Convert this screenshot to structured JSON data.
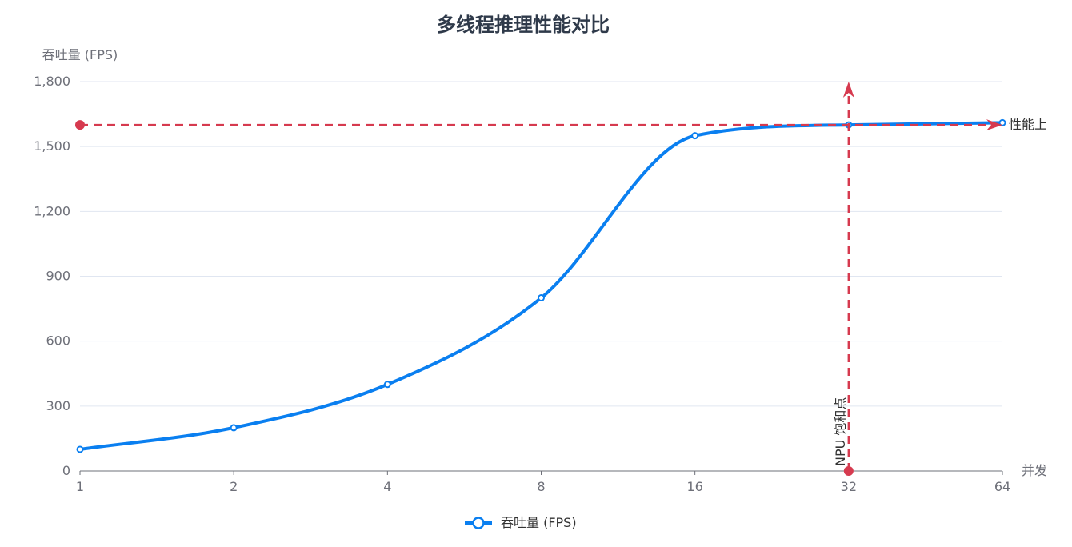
{
  "chart_data": {
    "type": "line",
    "title": "多线程推理性能对比",
    "ylabel": "吞吐量 (FPS)",
    "xlabel": "并发",
    "x_scale": "log2",
    "x": [
      1,
      2,
      4,
      8,
      16,
      32,
      64
    ],
    "x_tick_labels": [
      "1",
      "2",
      "4",
      "8",
      "16",
      "32",
      "64"
    ],
    "ylim": [
      0,
      1800
    ],
    "y_ticks": [
      0,
      300,
      600,
      900,
      1200,
      1500,
      1800
    ],
    "y_tick_labels": [
      "0",
      "300",
      "600",
      "900",
      "1,200",
      "1,500",
      "1,800"
    ],
    "grid": true,
    "legend_position": "bottom-center",
    "series": [
      {
        "name": "吞吐量 (FPS)",
        "color": "#0a7ff0",
        "smooth": true,
        "values": [
          100,
          200,
          400,
          800,
          1550,
          1600,
          1610
        ]
      }
    ],
    "mark_lines": [
      {
        "label": "NPU 饱和点",
        "axis": "x",
        "value": 32,
        "color": "#d63a4f",
        "style": "dashed"
      },
      {
        "label": "性能上限",
        "axis": "y",
        "value": 1600,
        "color": "#d63a4f",
        "style": "dashed"
      }
    ]
  }
}
